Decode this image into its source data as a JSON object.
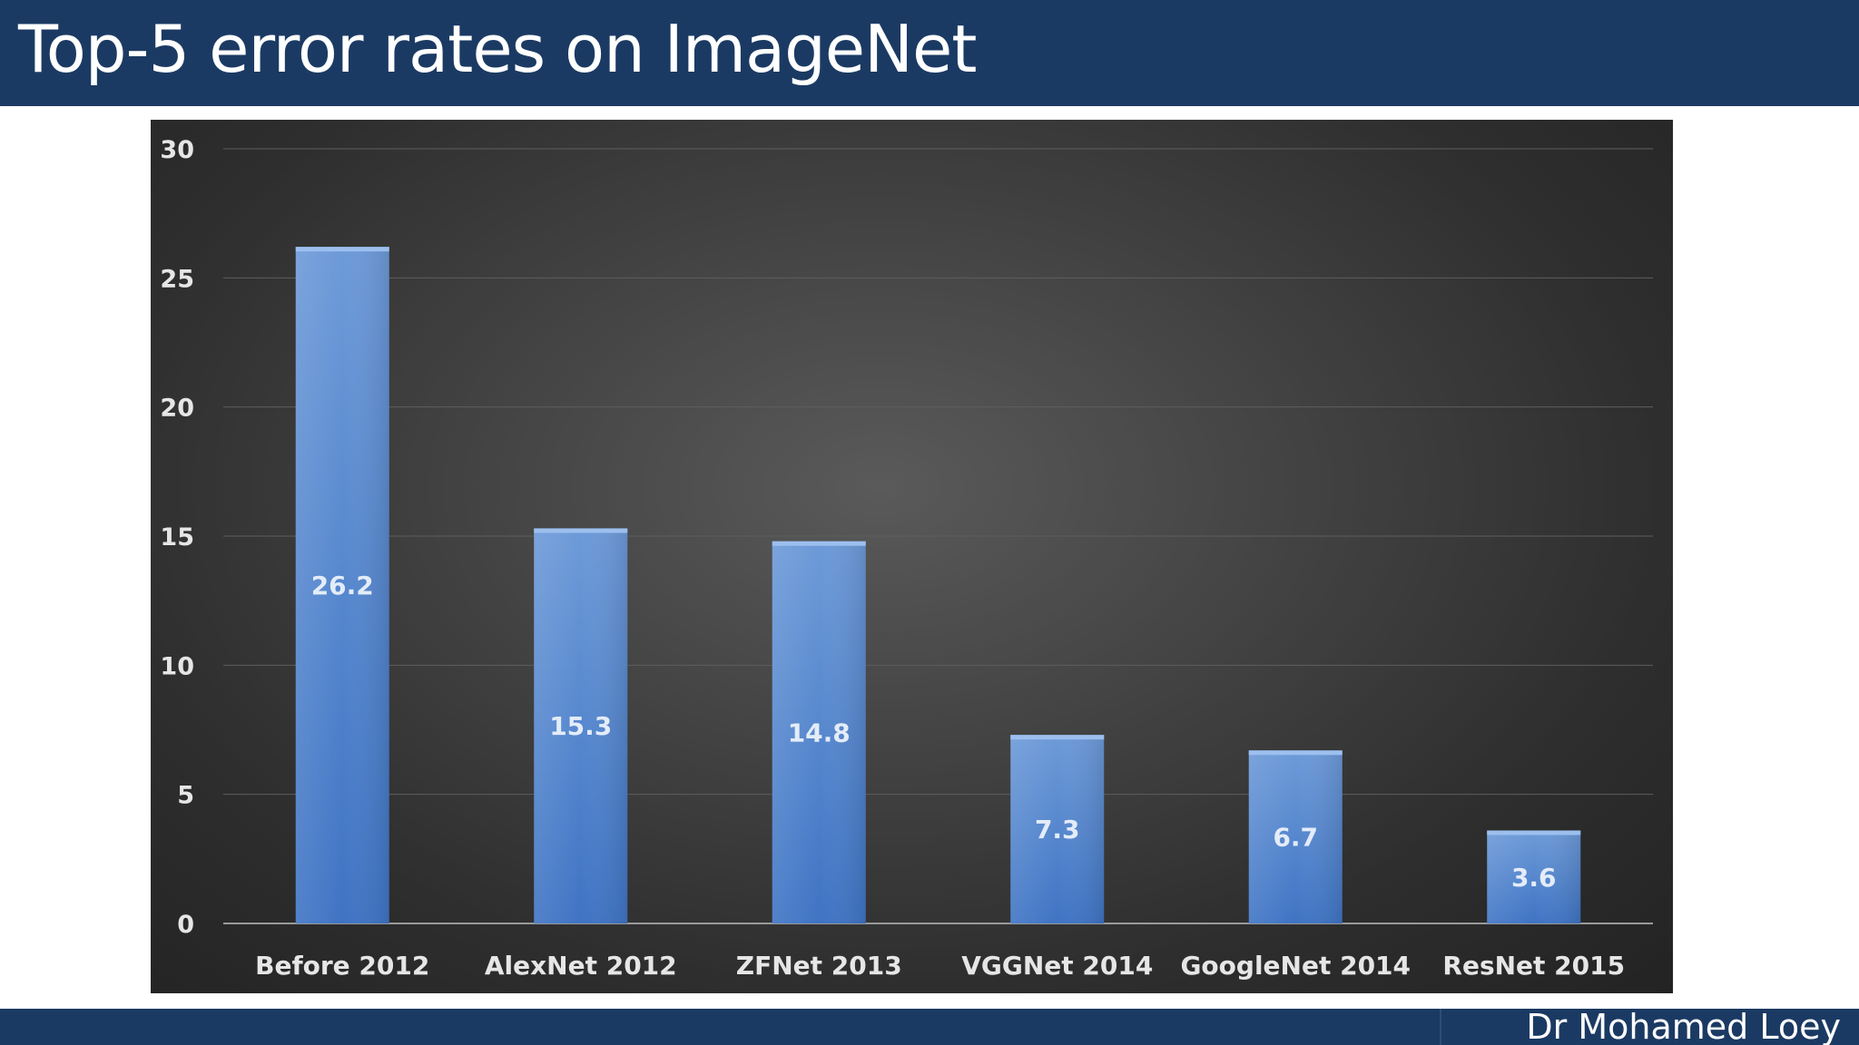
{
  "slide": {
    "title": "Top-5 error rates on ImageNet",
    "author": "Dr Mohamed Loey"
  },
  "colors": {
    "title_bar": "#1b3a63",
    "bar_fill_top": "#6d9ad8",
    "bar_fill_bottom": "#3f74c4",
    "gridline": "#5e5e5e",
    "axis_text": "#e6e6e6"
  },
  "chart_data": {
    "type": "bar",
    "title": "",
    "xlabel": "",
    "ylabel": "",
    "categories": [
      "Before 2012",
      "AlexNet 2012",
      "ZFNet 2013",
      "VGGNet 2014",
      "GoogleNet 2014",
      "ResNet 2015"
    ],
    "values": [
      26.2,
      15.3,
      14.8,
      7.3,
      6.7,
      3.6
    ],
    "data_labels": [
      "26.2",
      "15.3",
      "14.8",
      "7.3",
      "6.7",
      "3.6"
    ],
    "ylim": [
      0,
      30
    ],
    "yticks": [
      0,
      5,
      10,
      15,
      20,
      25,
      30
    ],
    "grid": true,
    "legend": "none"
  }
}
